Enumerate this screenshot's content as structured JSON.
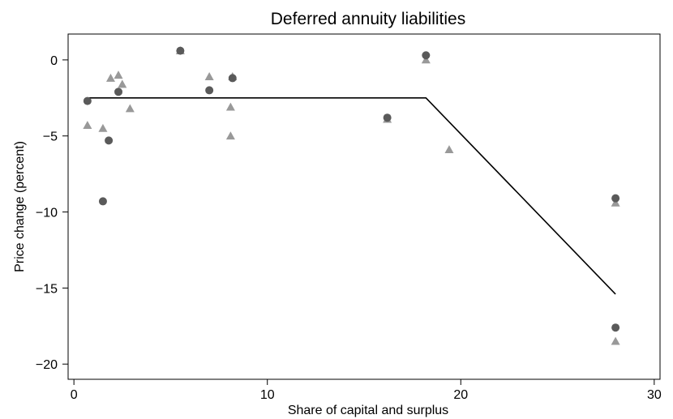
{
  "chart_data": {
    "type": "scatter",
    "title": "Deferred annuity liabilities",
    "xlabel": "Share of capital and surplus",
    "ylabel": "Price change (percent)",
    "xlim": [
      -0.3,
      30.3
    ],
    "ylim": [
      -21,
      1.7
    ],
    "x_ticks": [
      0,
      10,
      20,
      30
    ],
    "x_tick_labels": [
      "0",
      "10",
      "20",
      "30"
    ],
    "y_ticks": [
      0,
      -5,
      -10,
      -15,
      -20
    ],
    "y_tick_labels": [
      "0",
      "−5",
      "−10",
      "−15",
      "−20"
    ],
    "grid": false,
    "legend": "none",
    "colors": {
      "circle": "#5a5a5a",
      "triangle": "#999999",
      "line": "#000000",
      "axes": "#000000"
    },
    "series": [
      {
        "marker": "circle",
        "points": [
          {
            "x": 0.7,
            "y": -2.7
          },
          {
            "x": 1.5,
            "y": -9.3
          },
          {
            "x": 1.8,
            "y": -5.3
          },
          {
            "x": 2.3,
            "y": -2.1
          },
          {
            "x": 5.5,
            "y": 0.6
          },
          {
            "x": 7.0,
            "y": -2.0
          },
          {
            "x": 8.2,
            "y": -1.2
          },
          {
            "x": 16.2,
            "y": -3.8
          },
          {
            "x": 18.2,
            "y": 0.3
          },
          {
            "x": 28.0,
            "y": -9.1
          },
          {
            "x": 28.0,
            "y": -17.6
          }
        ]
      },
      {
        "marker": "triangle",
        "points": [
          {
            "x": 0.7,
            "y": -4.3
          },
          {
            "x": 1.5,
            "y": -4.5
          },
          {
            "x": 1.9,
            "y": -1.2
          },
          {
            "x": 2.3,
            "y": -1.0
          },
          {
            "x": 2.5,
            "y": -1.6
          },
          {
            "x": 2.9,
            "y": -3.2
          },
          {
            "x": 5.5,
            "y": 0.6
          },
          {
            "x": 7.0,
            "y": -1.1
          },
          {
            "x": 8.1,
            "y": -3.1
          },
          {
            "x": 8.1,
            "y": -5.0
          },
          {
            "x": 8.2,
            "y": -1.1
          },
          {
            "x": 16.2,
            "y": -3.9
          },
          {
            "x": 18.2,
            "y": 0.0
          },
          {
            "x": 19.4,
            "y": -5.9
          },
          {
            "x": 28.0,
            "y": -9.4
          },
          {
            "x": 28.0,
            "y": -18.5
          }
        ]
      }
    ],
    "fit_line": [
      {
        "x": 0.7,
        "y": -2.5
      },
      {
        "x": 18.2,
        "y": -2.5
      },
      {
        "x": 28.0,
        "y": -15.4
      }
    ]
  }
}
